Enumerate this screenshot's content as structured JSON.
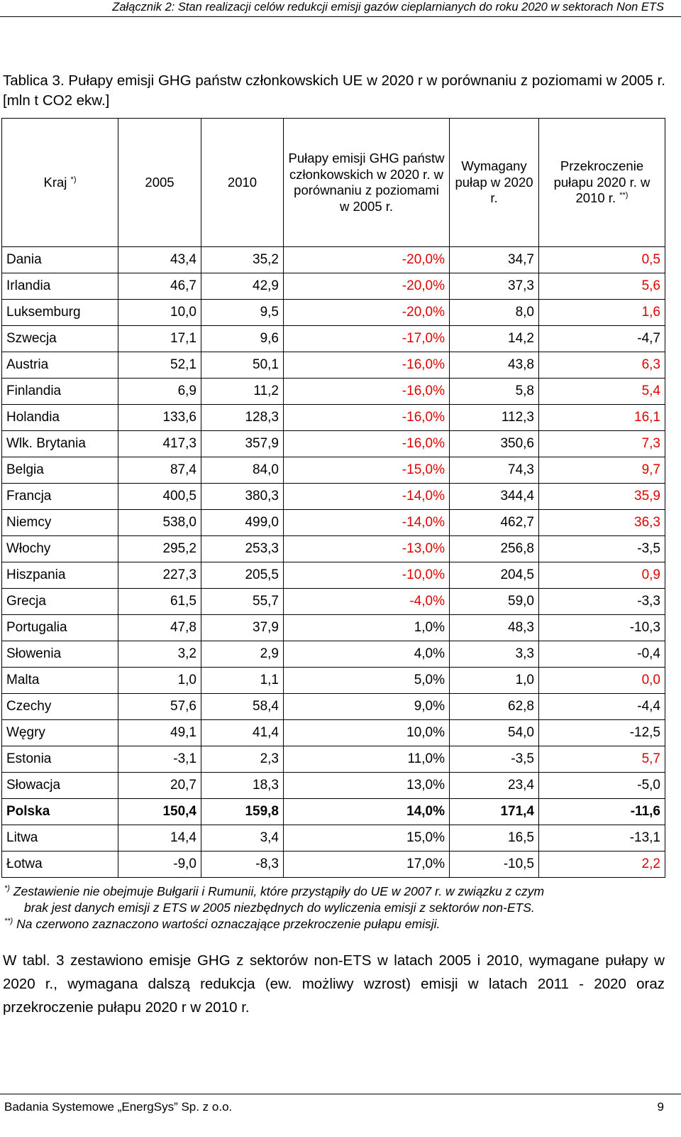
{
  "running_header": "Załącznik 2: Stan realizacji celów redukcji emisji gazów cieplarnianych do roku 2020 w sektorach Non ETS",
  "caption": "Tablica 3. Pułapy emisji GHG państw członkowskich UE w 2020 r w porównaniu z poziomami w 2005 r. [mln t CO2 ekw.]",
  "table": {
    "headers": {
      "kraj": "Kraj",
      "kraj_sup": "*)",
      "y2005": "2005",
      "y2010": "2010",
      "cap": "Pułapy emisji GHG państw członkowskich w 2020 r. w porównaniu z poziomami w 2005 r.",
      "required": "Wymagany pułap w 2020 r.",
      "excess": "Przekroczenie pułapu 2020 r. w 2010 r.",
      "excess_sup": "**)"
    },
    "rows": [
      {
        "country": "Dania",
        "v2005": "43,4",
        "v2010": "35,2",
        "cap": "-20,0%",
        "required": "34,7",
        "excess": "0,5",
        "cap_red": true,
        "excess_red": true
      },
      {
        "country": "Irlandia",
        "v2005": "46,7",
        "v2010": "42,9",
        "cap": "-20,0%",
        "required": "37,3",
        "excess": "5,6",
        "cap_red": true,
        "excess_red": true
      },
      {
        "country": "Luksemburg",
        "v2005": "10,0",
        "v2010": "9,5",
        "cap": "-20,0%",
        "required": "8,0",
        "excess": "1,6",
        "cap_red": true,
        "excess_red": true
      },
      {
        "country": "Szwecja",
        "v2005": "17,1",
        "v2010": "9,6",
        "cap": "-17,0%",
        "required": "14,2",
        "excess": "-4,7",
        "cap_red": true,
        "excess_red": false
      },
      {
        "country": "Austria",
        "v2005": "52,1",
        "v2010": "50,1",
        "cap": "-16,0%",
        "required": "43,8",
        "excess": "6,3",
        "cap_red": true,
        "excess_red": true
      },
      {
        "country": "Finlandia",
        "v2005": "6,9",
        "v2010": "11,2",
        "cap": "-16,0%",
        "required": "5,8",
        "excess": "5,4",
        "cap_red": true,
        "excess_red": true
      },
      {
        "country": "Holandia",
        "v2005": "133,6",
        "v2010": "128,3",
        "cap": "-16,0%",
        "required": "112,3",
        "excess": "16,1",
        "cap_red": true,
        "excess_red": true
      },
      {
        "country": "Wlk. Brytania",
        "v2005": "417,3",
        "v2010": "357,9",
        "cap": "-16,0%",
        "required": "350,6",
        "excess": "7,3",
        "cap_red": true,
        "excess_red": true
      },
      {
        "country": "Belgia",
        "v2005": "87,4",
        "v2010": "84,0",
        "cap": "-15,0%",
        "required": "74,3",
        "excess": "9,7",
        "cap_red": true,
        "excess_red": true
      },
      {
        "country": "Francja",
        "v2005": "400,5",
        "v2010": "380,3",
        "cap": "-14,0%",
        "required": "344,4",
        "excess": "35,9",
        "cap_red": true,
        "excess_red": true
      },
      {
        "country": "Niemcy",
        "v2005": "538,0",
        "v2010": "499,0",
        "cap": "-14,0%",
        "required": "462,7",
        "excess": "36,3",
        "cap_red": true,
        "excess_red": true
      },
      {
        "country": "Włochy",
        "v2005": "295,2",
        "v2010": "253,3",
        "cap": "-13,0%",
        "required": "256,8",
        "excess": "-3,5",
        "cap_red": true,
        "excess_red": false
      },
      {
        "country": "Hiszpania",
        "v2005": "227,3",
        "v2010": "205,5",
        "cap": "-10,0%",
        "required": "204,5",
        "excess": "0,9",
        "cap_red": true,
        "excess_red": true
      },
      {
        "country": "Grecja",
        "v2005": "61,5",
        "v2010": "55,7",
        "cap": "-4,0%",
        "required": "59,0",
        "excess": "-3,3",
        "cap_red": true,
        "excess_red": false
      },
      {
        "country": "Portugalia",
        "v2005": "47,8",
        "v2010": "37,9",
        "cap": "1,0%",
        "required": "48,3",
        "excess": "-10,3",
        "cap_red": false,
        "excess_red": false
      },
      {
        "country": "Słowenia",
        "v2005": "3,2",
        "v2010": "2,9",
        "cap": "4,0%",
        "required": "3,3",
        "excess": "-0,4",
        "cap_red": false,
        "excess_red": false
      },
      {
        "country": "Malta",
        "v2005": "1,0",
        "v2010": "1,1",
        "cap": "5,0%",
        "required": "1,0",
        "excess": "0,0",
        "cap_red": false,
        "excess_red": true
      },
      {
        "country": "Czechy",
        "v2005": "57,6",
        "v2010": "58,4",
        "cap": "9,0%",
        "required": "62,8",
        "excess": "-4,4",
        "cap_red": false,
        "excess_red": false
      },
      {
        "country": "Węgry",
        "v2005": "49,1",
        "v2010": "41,4",
        "cap": "10,0%",
        "required": "54,0",
        "excess": "-12,5",
        "cap_red": false,
        "excess_red": false
      },
      {
        "country": "Estonia",
        "v2005": "-3,1",
        "v2010": "2,3",
        "cap": "11,0%",
        "required": "-3,5",
        "excess": "5,7",
        "cap_red": false,
        "excess_red": true
      },
      {
        "country": "Słowacja",
        "v2005": "20,7",
        "v2010": "18,3",
        "cap": "13,0%",
        "required": "23,4",
        "excess": "-5,0",
        "cap_red": false,
        "excess_red": false
      },
      {
        "country": "Polska",
        "v2005": "150,4",
        "v2010": "159,8",
        "cap": "14,0%",
        "required": "171,4",
        "excess": "-11,6",
        "cap_red": false,
        "excess_red": false,
        "bold": true
      },
      {
        "country": "Litwa",
        "v2005": "14,4",
        "v2010": "3,4",
        "cap": "15,0%",
        "required": "16,5",
        "excess": "-13,1",
        "cap_red": false,
        "excess_red": false
      },
      {
        "country": "Łotwa",
        "v2005": "-9,0",
        "v2010": "-8,3",
        "cap": "17,0%",
        "required": "-10,5",
        "excess": "2,2",
        "cap_red": false,
        "excess_red": true
      }
    ]
  },
  "footnotes": {
    "fn1_mark": "*)",
    "fn1_line1": "Zestawienie nie obejmuje Bułgarii i Rumunii, które przystąpiły do UE w 2007 r. w związku z czym",
    "fn1_line2": "brak jest danych emisji z ETS w 2005  niezbędnych do wyliczenia emisji z sektorów non-ETS.",
    "fn2_mark": "**)",
    "fn2_text": "Na czerwono zaznaczono wartości oznaczające przekroczenie pułapu emisji."
  },
  "body_text": "W tabl. 3 zestawiono emisje GHG z sektorów non-ETS w latach 2005 i 2010, wymagane pułapy w 2020 r., wymagana dalszą redukcja (ew. możliwy wzrost) emisji w latach 2011 - 2020 oraz przekroczenie pułapu 2020 r w 2010 r.",
  "footer": {
    "publisher": "Badania Systemowe „EnergSys” Sp. z o.o.",
    "page_number": "9"
  },
  "colors": {
    "highlight_red": "#e00000",
    "text": "#000000"
  }
}
